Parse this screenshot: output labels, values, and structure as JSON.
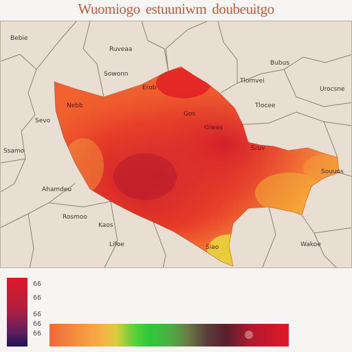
{
  "title": {
    "part1": "Wuomiogo",
    "part2": "estuuniwm",
    "part3": "doubeuitgo"
  },
  "colors": {
    "hot": "#e1172a",
    "warm": "#f36a2e",
    "mild": "#f7b046",
    "cool": "#4fd23a",
    "map_bg": "#e8dfd2",
    "title": "#c45a3a"
  },
  "outside_labels": [
    "Bebie",
    "Ruveaa",
    "Sowonn",
    "Bubus",
    "Tlomvei",
    "Urocsne",
    "Sevo",
    "Tlocee",
    "Ssamo",
    "Souuos",
    "Ahamdeu",
    "Rosmoo",
    "Kaos",
    "Lifoe",
    "Wakoe"
  ],
  "inner_labels": [
    "Erob",
    "Nebb",
    "Gos",
    "Giwas",
    "Sruv",
    "Siao"
  ],
  "legend": {
    "vertical_ticks": [
      "66",
      "66",
      "66",
      "66"
    ],
    "horizontal_tick": "66"
  }
}
